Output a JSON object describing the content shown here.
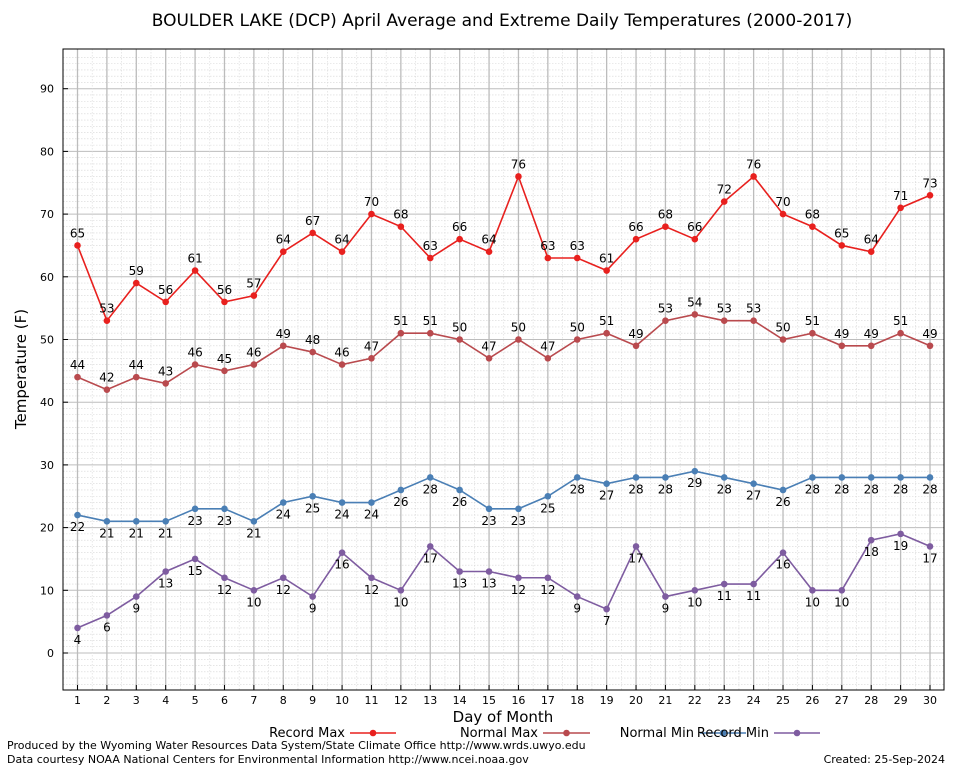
{
  "chart_data": {
    "type": "line",
    "title": "BOULDER LAKE (DCP) April Average and Extreme Daily Temperatures (2000-2017)",
    "xlabel": "Day of Month",
    "ylabel": "Temperature (F)",
    "x": [
      1,
      2,
      3,
      4,
      5,
      6,
      7,
      8,
      9,
      10,
      11,
      12,
      13,
      14,
      15,
      16,
      17,
      18,
      19,
      20,
      21,
      22,
      23,
      24,
      25,
      26,
      27,
      28,
      29,
      30
    ],
    "xlim": [
      0.5,
      30.5
    ],
    "ylim": [
      -6,
      96
    ],
    "y_ticks": [
      0,
      10,
      20,
      30,
      40,
      50,
      60,
      70,
      80,
      90
    ],
    "grid": true,
    "legend_position": "bottom",
    "series": [
      {
        "name": "Record Max",
        "color": "#e8201e",
        "label_position": "above",
        "values": [
          65,
          53,
          59,
          56,
          61,
          56,
          57,
          64,
          67,
          64,
          70,
          68,
          63,
          66,
          64,
          76,
          63,
          63,
          61,
          66,
          68,
          66,
          72,
          76,
          70,
          68,
          65,
          64,
          71,
          73
        ]
      },
      {
        "name": "Normal Max",
        "color": "#b94a4e",
        "label_position": "above",
        "values": [
          44,
          42,
          44,
          43,
          46,
          45,
          46,
          49,
          48,
          46,
          47,
          51,
          51,
          50,
          47,
          50,
          47,
          50,
          51,
          49,
          53,
          54,
          53,
          53,
          50,
          51,
          49,
          49,
          51,
          49
        ]
      },
      {
        "name": "Normal Min",
        "color": "#4a7fb5",
        "label_position": "below",
        "values": [
          22,
          21,
          21,
          21,
          23,
          23,
          21,
          24,
          25,
          24,
          24,
          26,
          28,
          26,
          23,
          23,
          25,
          28,
          27,
          28,
          28,
          29,
          28,
          27,
          26,
          28,
          28,
          28,
          28,
          28
        ]
      },
      {
        "name": "Record Min",
        "color": "#7e5ca0",
        "label_position": "below",
        "values": [
          4,
          6,
          9,
          13,
          15,
          12,
          10,
          12,
          9,
          16,
          12,
          10,
          17,
          13,
          13,
          12,
          12,
          9,
          7,
          17,
          9,
          10,
          11,
          11,
          16,
          10,
          10,
          18,
          19,
          17
        ]
      }
    ]
  },
  "footer": {
    "produced_by": "Produced by the Wyoming Water Resources Data System/State Climate Office http://www.wrds.uwyo.edu",
    "courtesy": "Data courtesy NOAA National Centers for Environmental Information http://www.ncei.noaa.gov",
    "created": "Created:  25-Sep-2024"
  }
}
